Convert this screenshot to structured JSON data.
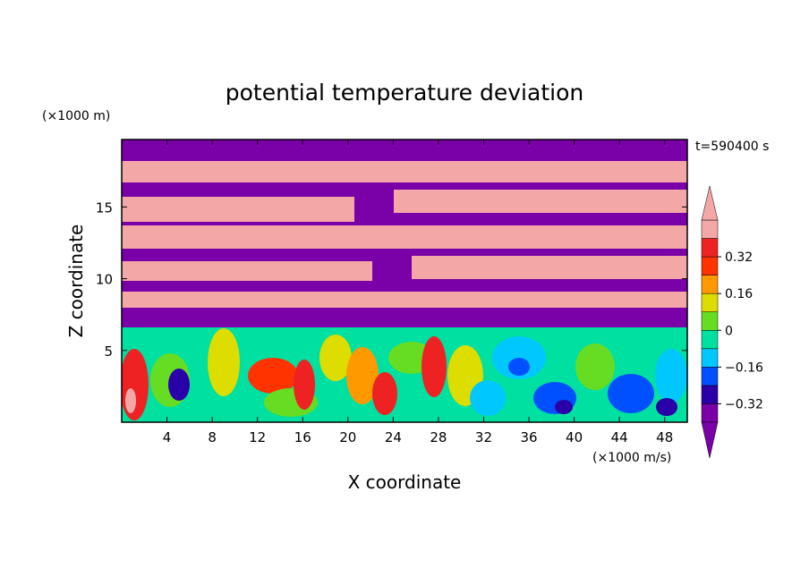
{
  "chart_data": {
    "type": "heatmap",
    "title": "potential temperature deviation",
    "xlabel": "X coordinate",
    "ylabel": "Z coordinate",
    "x_unit": "(×1000 m/s)",
    "y_unit": "(×1000 m)",
    "time_label": "t=590400 s",
    "xlim": [
      0,
      50
    ],
    "ylim": [
      0,
      19.7
    ],
    "x_ticks": [
      4,
      8,
      12,
      16,
      20,
      24,
      28,
      32,
      36,
      40,
      44,
      48
    ],
    "y_ticks": [
      5,
      10,
      15
    ],
    "colorbar": {
      "labels": [
        "0.32",
        "0.16",
        "0",
        "−0.16",
        "−0.32"
      ],
      "colors": [
        "#7a00a8",
        "#2a00a8",
        "#0050ff",
        "#00c8ff",
        "#00e0a0",
        "#66dd22",
        "#dddd00",
        "#ff9900",
        "#ff3300",
        "#ee2222",
        "#f4a7a7"
      ],
      "extend": "both"
    },
    "grid": false,
    "legend": "colorbar right"
  }
}
